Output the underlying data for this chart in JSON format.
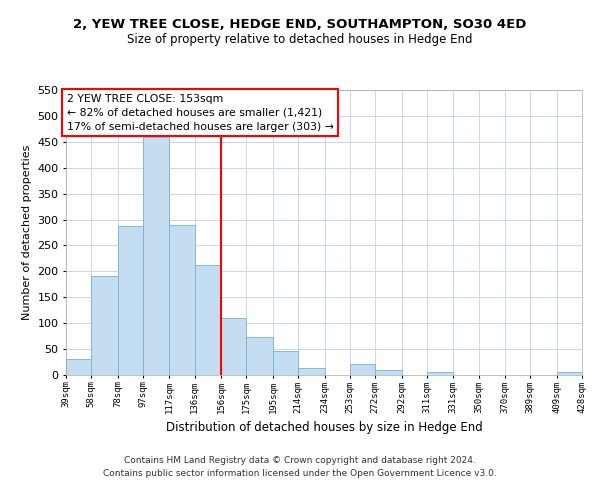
{
  "title": "2, YEW TREE CLOSE, HEDGE END, SOUTHAMPTON, SO30 4ED",
  "subtitle": "Size of property relative to detached houses in Hedge End",
  "xlabel": "Distribution of detached houses by size in Hedge End",
  "ylabel": "Number of detached properties",
  "footnote1": "Contains HM Land Registry data © Crown copyright and database right 2024.",
  "footnote2": "Contains public sector information licensed under the Open Government Licence v3.0.",
  "annotation_title": "2 YEW TREE CLOSE: 153sqm",
  "annotation_line1": "← 82% of detached houses are smaller (1,421)",
  "annotation_line2": "17% of semi-detached houses are larger (303) →",
  "bar_color": "#c5ddf0",
  "bar_edge_color": "#7bafd4",
  "reference_line_x": 156,
  "reference_line_color": "red",
  "bin_edges": [
    39,
    58,
    78,
    97,
    117,
    136,
    156,
    175,
    195,
    214,
    234,
    253,
    272,
    292,
    311,
    331,
    350,
    370,
    389,
    409,
    428
  ],
  "bin_labels": [
    "39sqm",
    "58sqm",
    "78sqm",
    "97sqm",
    "117sqm",
    "136sqm",
    "156sqm",
    "175sqm",
    "195sqm",
    "214sqm",
    "234sqm",
    "253sqm",
    "272sqm",
    "292sqm",
    "311sqm",
    "331sqm",
    "350sqm",
    "370sqm",
    "389sqm",
    "409sqm",
    "428sqm"
  ],
  "counts": [
    30,
    192,
    287,
    460,
    290,
    213,
    110,
    74,
    46,
    13,
    0,
    22,
    9,
    0,
    5,
    0,
    0,
    0,
    0,
    5
  ],
  "ylim": [
    0,
    550
  ],
  "yticks": [
    0,
    50,
    100,
    150,
    200,
    250,
    300,
    350,
    400,
    450,
    500,
    550
  ],
  "background_color": "#ffffff",
  "grid_color": "#c8d8e8"
}
